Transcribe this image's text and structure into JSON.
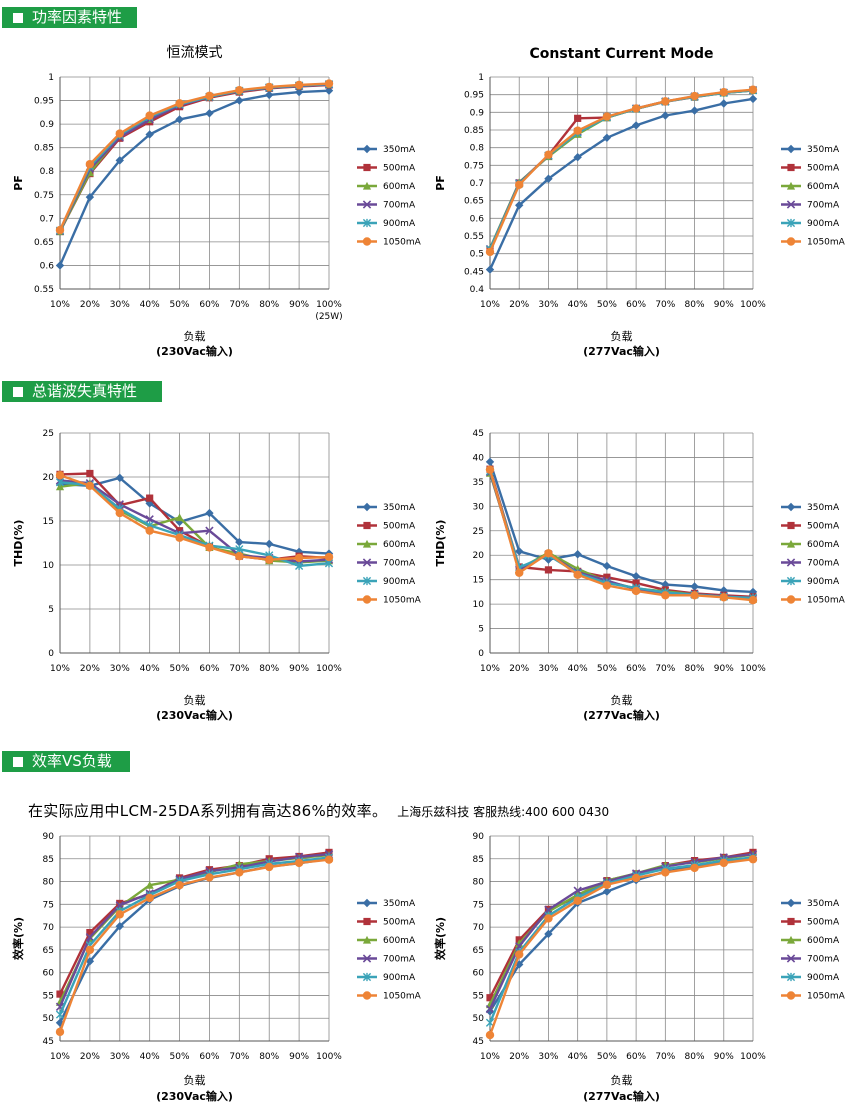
{
  "sections": {
    "pf": "功率因素特性",
    "thd": "总谐波失真特性",
    "eff": "效率VS负载"
  },
  "note": {
    "text": "在实际应用中LCM-25DA系列拥有高达86%的效率。",
    "hotline": "上海乐兹科技 客服热线:400 600 0430"
  },
  "colors": {
    "350mA": "#3a6ea5",
    "500mA": "#b0323a",
    "600mA": "#7aa83a",
    "700mA": "#6a4a98",
    "900mA": "#3aa3b8",
    "1050mA": "#ee8436",
    "header_bg": "#1e9d46",
    "grid": "#8a8a8a"
  },
  "chart_data": [
    {
      "id": "pf230",
      "type": "line",
      "title": "恒流模式",
      "xlabel": "负载",
      "xlabel2": "(230Vac输入)",
      "ylabel": "PF",
      "ylim": [
        0.55,
        1
      ],
      "yticks": [
        "0.55",
        "0.6",
        "0.65",
        "0.7",
        "0.75",
        "0.8",
        "0.85",
        "0.9",
        "0.95",
        "1"
      ],
      "categories": [
        "10%",
        "20%",
        "30%",
        "40%",
        "50%",
        "60%",
        "70%",
        "80%",
        "90%",
        "100%"
      ],
      "extra_xlabel": "(25W)",
      "grid": true,
      "legend": "right",
      "series": [
        {
          "name": "350mA",
          "marker": "diamond",
          "values": [
            0.6,
            0.745,
            0.823,
            0.878,
            0.91,
            0.923,
            0.95,
            0.962,
            0.968,
            0.971
          ]
        },
        {
          "name": "500mA",
          "marker": "square",
          "values": [
            0.672,
            0.795,
            0.87,
            0.905,
            0.937,
            0.956,
            0.968,
            0.976,
            0.98,
            0.983
          ]
        },
        {
          "name": "600mA",
          "marker": "triangle",
          "values": [
            0.672,
            0.797,
            0.875,
            0.91,
            0.942,
            0.958,
            0.97,
            0.977,
            0.981,
            0.984
          ]
        },
        {
          "name": "700mA",
          "marker": "x",
          "values": [
            0.673,
            0.805,
            0.872,
            0.91,
            0.94,
            0.958,
            0.97,
            0.977,
            0.981,
            0.984
          ]
        },
        {
          "name": "900mA",
          "marker": "star",
          "values": [
            0.674,
            0.81,
            0.877,
            0.915,
            0.942,
            0.958,
            0.971,
            0.978,
            0.982,
            0.985
          ]
        },
        {
          "name": "1050mA",
          "marker": "circle",
          "values": [
            0.675,
            0.815,
            0.88,
            0.918,
            0.944,
            0.96,
            0.972,
            0.979,
            0.983,
            0.986
          ]
        }
      ]
    },
    {
      "id": "pf277",
      "type": "line",
      "title": "Constant Current Mode",
      "xlabel": "负载",
      "xlabel2": "(277Vac输入)",
      "ylabel": "PF",
      "ylim": [
        0.4,
        1
      ],
      "yticks": [
        "0.4",
        "0.45",
        "0.5",
        "0.55",
        "0.6",
        "0.65",
        "0.7",
        "0.75",
        "0.8",
        "0.85",
        "0.9",
        "0.95",
        "1"
      ],
      "categories": [
        "10%",
        "20%",
        "30%",
        "40%",
        "50%",
        "60%",
        "70%",
        "80%",
        "90%",
        "100%"
      ],
      "grid": true,
      "legend": "right",
      "series": [
        {
          "name": "350mA",
          "marker": "diamond",
          "values": [
            0.455,
            0.637,
            0.712,
            0.773,
            0.828,
            0.863,
            0.891,
            0.905,
            0.925,
            0.938
          ]
        },
        {
          "name": "500mA",
          "marker": "square",
          "values": [
            0.51,
            0.7,
            0.778,
            0.883,
            0.885,
            0.91,
            0.93,
            0.943,
            0.955,
            0.962
          ]
        },
        {
          "name": "600mA",
          "marker": "triangle",
          "values": [
            0.515,
            0.702,
            0.775,
            0.838,
            0.885,
            0.91,
            0.931,
            0.944,
            0.955,
            0.962
          ]
        },
        {
          "name": "700mA",
          "marker": "x",
          "values": [
            0.513,
            0.7,
            0.777,
            0.845,
            0.887,
            0.911,
            0.931,
            0.945,
            0.956,
            0.963
          ]
        },
        {
          "name": "900mA",
          "marker": "star",
          "values": [
            0.512,
            0.698,
            0.778,
            0.842,
            0.886,
            0.91,
            0.93,
            0.944,
            0.955,
            0.962
          ]
        },
        {
          "name": "1050mA",
          "marker": "circle",
          "values": [
            0.505,
            0.695,
            0.78,
            0.848,
            0.888,
            0.911,
            0.931,
            0.946,
            0.957,
            0.964
          ]
        }
      ]
    },
    {
      "id": "thd230",
      "type": "line",
      "title": "",
      "xlabel": "负载",
      "xlabel2": "(230Vac输入)",
      "ylabel": "THD(%)",
      "ylim": [
        0,
        25
      ],
      "yticks": [
        "0",
        "5",
        "10",
        "15",
        "20",
        "25"
      ],
      "categories": [
        "10%",
        "20%",
        "30%",
        "40%",
        "50%",
        "60%",
        "70%",
        "80%",
        "90%",
        "100%"
      ],
      "grid": true,
      "legend": "right",
      "series": [
        {
          "name": "350mA",
          "marker": "diamond",
          "values": [
            19.2,
            19.0,
            19.9,
            17.0,
            14.9,
            15.9,
            12.6,
            12.4,
            11.5,
            11.3
          ]
        },
        {
          "name": "500mA",
          "marker": "square",
          "values": [
            20.3,
            20.4,
            16.8,
            17.6,
            13.9,
            12.1,
            11.0,
            10.6,
            11.0,
            10.8
          ]
        },
        {
          "name": "600mA",
          "marker": "triangle",
          "values": [
            18.9,
            19.3,
            16.2,
            14.4,
            15.4,
            12.0,
            11.3,
            10.5,
            10.3,
            10.5
          ]
        },
        {
          "name": "700mA",
          "marker": "x",
          "values": [
            19.6,
            19.3,
            16.9,
            15.2,
            13.6,
            13.9,
            11.1,
            10.8,
            10.4,
            10.6
          ]
        },
        {
          "name": "900mA",
          "marker": "star",
          "values": [
            19.4,
            19.1,
            16.4,
            14.5,
            13.4,
            12.2,
            11.8,
            11.1,
            9.9,
            10.2
          ]
        },
        {
          "name": "1050mA",
          "marker": "circle",
          "values": [
            20.2,
            19.0,
            15.9,
            13.9,
            13.1,
            12.0,
            11.0,
            10.6,
            10.8,
            10.9
          ]
        }
      ]
    },
    {
      "id": "thd277",
      "type": "line",
      "title": "",
      "xlabel": "负载",
      "xlabel2": "(277Vac输入)",
      "ylabel": "THD(%)",
      "ylim": [
        0,
        45
      ],
      "yticks": [
        "0",
        "5",
        "10",
        "15",
        "20",
        "25",
        "30",
        "35",
        "40",
        "45"
      ],
      "categories": [
        "10%",
        "20%",
        "30%",
        "40%",
        "50%",
        "60%",
        "70%",
        "80%",
        "90%",
        "100%"
      ],
      "grid": true,
      "legend": "right",
      "series": [
        {
          "name": "350mA",
          "marker": "diamond",
          "values": [
            39.1,
            20.8,
            19.1,
            20.2,
            17.8,
            15.7,
            14.0,
            13.6,
            12.8,
            12.5
          ]
        },
        {
          "name": "500mA",
          "marker": "square",
          "values": [
            37.6,
            17.6,
            17.0,
            16.7,
            15.5,
            14.3,
            12.9,
            12.2,
            11.8,
            11.5
          ]
        },
        {
          "name": "600mA",
          "marker": "triangle",
          "values": [
            36.8,
            17.2,
            20.5,
            17.2,
            14.6,
            13.2,
            12.6,
            12.0,
            11.6,
            11.0
          ]
        },
        {
          "name": "700mA",
          "marker": "x",
          "values": [
            37.0,
            17.0,
            20.2,
            16.5,
            14.8,
            13.0,
            12.3,
            12.0,
            11.6,
            11.2
          ]
        },
        {
          "name": "900mA",
          "marker": "star",
          "values": [
            37.2,
            17.5,
            20.0,
            16.3,
            14.3,
            13.3,
            12.4,
            11.9,
            11.5,
            11.3
          ]
        },
        {
          "name": "1050mA",
          "marker": "circle",
          "values": [
            37.5,
            16.4,
            20.4,
            16.0,
            13.8,
            12.7,
            11.8,
            11.8,
            11.4,
            10.8
          ]
        }
      ]
    },
    {
      "id": "eff230",
      "type": "line",
      "title": "",
      "xlabel": "负载",
      "xlabel2": "(230Vac输入)",
      "ylabel": "效率(%)",
      "ylim": [
        45,
        90
      ],
      "yticks": [
        "45",
        "50",
        "55",
        "60",
        "65",
        "70",
        "75",
        "80",
        "85",
        "90"
      ],
      "categories": [
        "10%",
        "20%",
        "30%",
        "40%",
        "50%",
        "60%",
        "70%",
        "80%",
        "90%",
        "100%"
      ],
      "grid": true,
      "legend": "right",
      "series": [
        {
          "name": "350mA",
          "marker": "diamond",
          "values": [
            49.0,
            62.5,
            70.2,
            76.0,
            79.0,
            80.8,
            82.0,
            83.3,
            84.0,
            85.0
          ]
        },
        {
          "name": "500mA",
          "marker": "square",
          "values": [
            55.3,
            68.8,
            75.2,
            77.2,
            80.8,
            82.6,
            83.5,
            85.0,
            85.5,
            86.4
          ]
        },
        {
          "name": "600mA",
          "marker": "triangle",
          "values": [
            53.5,
            67.5,
            74.5,
            79.2,
            80.4,
            82.0,
            83.8,
            84.5,
            85.2,
            85.8
          ]
        },
        {
          "name": "700mA",
          "marker": "x",
          "values": [
            52.5,
            67.8,
            74.8,
            77.4,
            80.5,
            82.3,
            83.1,
            84.4,
            85.4,
            86.0
          ]
        },
        {
          "name": "900mA",
          "marker": "star",
          "values": [
            50.8,
            66.0,
            73.5,
            77.0,
            80.1,
            81.6,
            82.7,
            83.9,
            84.5,
            85.3
          ]
        },
        {
          "name": "1050mA",
          "marker": "circle",
          "values": [
            47.0,
            65.0,
            72.8,
            76.4,
            79.2,
            80.9,
            82.0,
            83.2,
            84.1,
            84.8
          ]
        }
      ]
    },
    {
      "id": "eff277",
      "type": "line",
      "title": "",
      "xlabel": "负载",
      "xlabel2": "(277Vac输入)",
      "ylabel": "效率(%)",
      "ylim": [
        45,
        90
      ],
      "yticks": [
        "45",
        "50",
        "55",
        "60",
        "65",
        "70",
        "75",
        "80",
        "85",
        "90"
      ],
      "categories": [
        "10%",
        "20%",
        "30%",
        "40%",
        "50%",
        "60%",
        "70%",
        "80%",
        "90%",
        "100%"
      ],
      "grid": true,
      "legend": "right",
      "series": [
        {
          "name": "350mA",
          "marker": "diamond",
          "values": [
            51.5,
            61.8,
            68.5,
            75.3,
            77.8,
            80.3,
            82.2,
            83.3,
            84.4,
            85.2
          ]
        },
        {
          "name": "500mA",
          "marker": "square",
          "values": [
            54.5,
            67.2,
            73.9,
            76.6,
            80.2,
            81.7,
            83.5,
            84.6,
            85.3,
            86.4
          ]
        },
        {
          "name": "600mA",
          "marker": "triangle",
          "values": [
            53.0,
            66.4,
            73.4,
            77.1,
            80.2,
            81.8,
            83.6,
            84.2,
            85.1,
            85.9
          ]
        },
        {
          "name": "700mA",
          "marker": "x",
          "values": [
            52.0,
            65.8,
            73.8,
            78.0,
            80.0,
            81.8,
            83.3,
            84.3,
            85.3,
            86.0
          ]
        },
        {
          "name": "900mA",
          "marker": "star",
          "values": [
            49.0,
            64.5,
            72.5,
            76.5,
            79.6,
            81.3,
            82.8,
            83.6,
            84.6,
            85.3
          ]
        },
        {
          "name": "1050mA",
          "marker": "circle",
          "values": [
            46.3,
            64.0,
            71.9,
            75.8,
            79.3,
            80.8,
            82.0,
            83.0,
            84.1,
            84.9
          ]
        }
      ]
    }
  ]
}
